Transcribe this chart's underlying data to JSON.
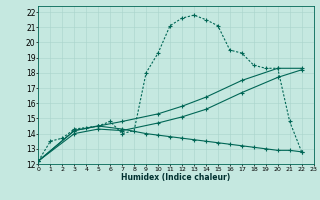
{
  "xlabel": "Humidex (Indice chaleur)",
  "bg_color": "#c5e8e0",
  "line_color": "#006655",
  "grid_color": "#aad4cc",
  "xlim": [
    0,
    23
  ],
  "ylim": [
    12,
    22.4
  ],
  "xticks": [
    0,
    1,
    2,
    3,
    4,
    5,
    6,
    7,
    8,
    9,
    10,
    11,
    12,
    13,
    14,
    15,
    16,
    17,
    18,
    19,
    20,
    21,
    22,
    23
  ],
  "yticks": [
    12,
    13,
    14,
    15,
    16,
    17,
    18,
    19,
    20,
    21,
    22
  ],
  "curve1_x": [
    0,
    1,
    2,
    3,
    4,
    5,
    6,
    7,
    8,
    9,
    10,
    11,
    12,
    13,
    14,
    15,
    16,
    17,
    18,
    19,
    20,
    21,
    22
  ],
  "curve1_y": [
    12.2,
    13.5,
    13.7,
    14.3,
    14.4,
    14.5,
    14.8,
    14.0,
    14.2,
    18.0,
    19.3,
    21.1,
    21.6,
    21.8,
    21.5,
    21.1,
    19.5,
    19.3,
    18.5,
    18.3,
    18.3,
    14.8,
    12.8
  ],
  "diag1_x": [
    0,
    3,
    5,
    7,
    10,
    12,
    14,
    17,
    20,
    22
  ],
  "diag1_y": [
    12.2,
    14.2,
    14.5,
    14.8,
    15.3,
    15.8,
    16.4,
    17.5,
    18.3,
    18.3
  ],
  "diag2_x": [
    0,
    3,
    5,
    7,
    10,
    12,
    14,
    17,
    20,
    22
  ],
  "diag2_y": [
    12.2,
    14.0,
    14.3,
    14.2,
    14.7,
    15.1,
    15.6,
    16.7,
    17.7,
    18.2
  ],
  "flat_x": [
    0,
    3,
    5,
    7,
    9,
    10,
    11,
    12,
    13,
    14,
    15,
    16,
    17,
    18,
    19,
    20,
    21,
    22
  ],
  "flat_y": [
    12.2,
    14.2,
    14.5,
    14.3,
    14.0,
    13.9,
    13.8,
    13.7,
    13.6,
    13.5,
    13.4,
    13.3,
    13.2,
    13.1,
    13.0,
    12.9,
    12.9,
    12.8
  ]
}
